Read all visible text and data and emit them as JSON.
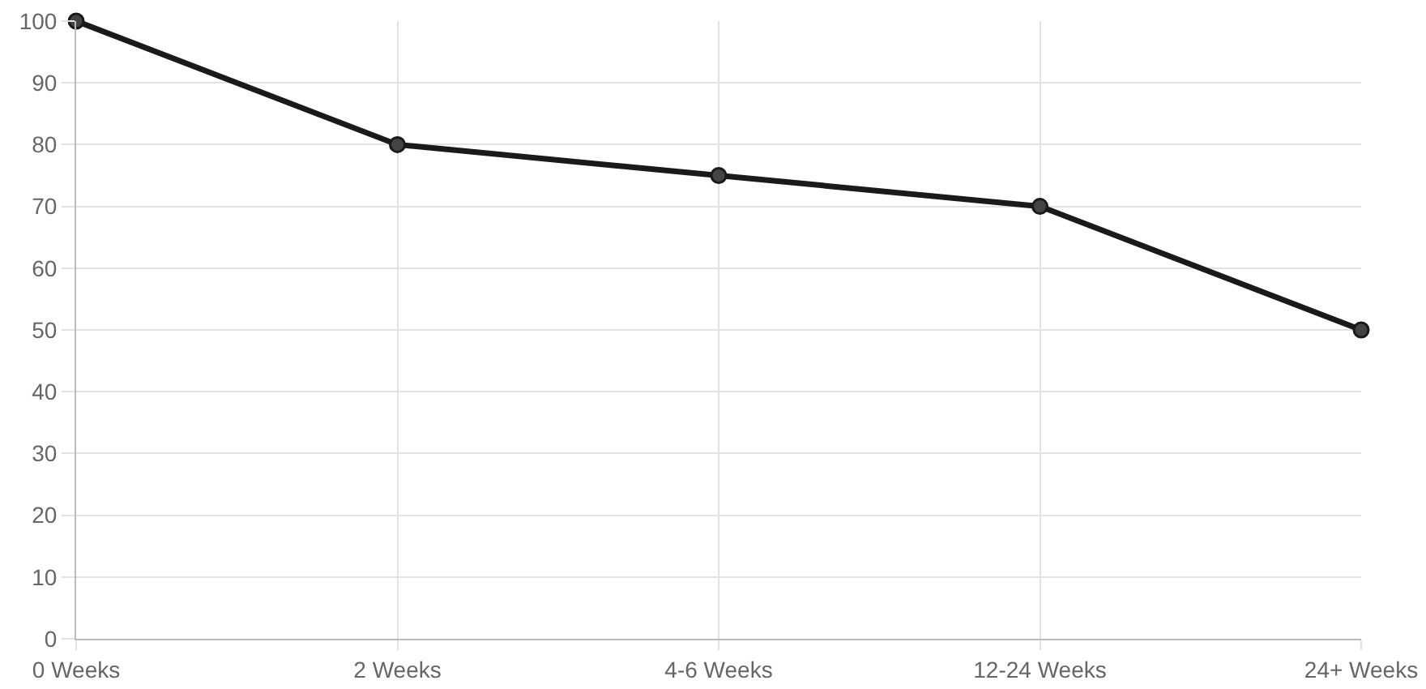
{
  "chart_data": {
    "type": "line",
    "categories": [
      "0 Weeks",
      "2 Weeks",
      "4-6 Weeks",
      "12-24 Weeks",
      "24+ Weeks"
    ],
    "series": [
      {
        "color": "#1a1a1a",
        "values": [
          100,
          80,
          75,
          70,
          50
        ]
      }
    ],
    "ylim": [
      0,
      100
    ],
    "yticks": [
      0,
      10,
      20,
      30,
      40,
      50,
      60,
      70,
      80,
      90,
      100
    ],
    "grid": true,
    "marker": "circle",
    "line_style": "solid"
  }
}
